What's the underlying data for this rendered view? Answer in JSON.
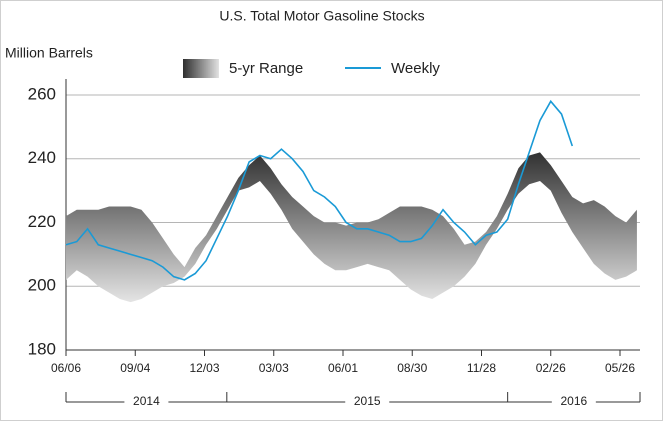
{
  "chart_data": {
    "type": "line",
    "title": "U.S. Total Motor Gasoline Stocks",
    "y_axis_label": "Million Barrels",
    "x": [
      "2014-06-06",
      "2014-06-20",
      "2014-07-04",
      "2014-07-18",
      "2014-08-01",
      "2014-08-15",
      "2014-08-29",
      "2014-09-12",
      "2014-09-26",
      "2014-10-10",
      "2014-10-24",
      "2014-11-07",
      "2014-11-21",
      "2014-12-05",
      "2014-12-19",
      "2015-01-02",
      "2015-01-16",
      "2015-01-30",
      "2015-02-13",
      "2015-02-27",
      "2015-03-13",
      "2015-03-27",
      "2015-04-10",
      "2015-04-24",
      "2015-05-08",
      "2015-05-22",
      "2015-06-05",
      "2015-06-19",
      "2015-07-03",
      "2015-07-17",
      "2015-07-31",
      "2015-08-14",
      "2015-08-28",
      "2015-09-11",
      "2015-09-25",
      "2015-10-09",
      "2015-10-23",
      "2015-11-06",
      "2015-11-20",
      "2015-12-04",
      "2015-12-18",
      "2016-01-01",
      "2016-01-15",
      "2016-01-29",
      "2016-02-12",
      "2016-02-26",
      "2016-03-11",
      "2016-03-25",
      "2016-04-08",
      "2016-04-22",
      "2016-05-06",
      "2016-05-20",
      "2016-06-03",
      "2016-06-17"
    ],
    "series": [
      {
        "name": "5-yr Range",
        "kind": "range",
        "colors": [
          "#2e2e2e",
          "#e2e2e2"
        ],
        "lower": [
          202,
          205,
          203,
          200,
          198,
          196,
          195,
          196,
          198,
          200,
          201,
          203,
          207,
          213,
          218,
          224,
          230,
          231,
          233,
          229,
          224,
          218,
          214,
          210,
          207,
          205,
          205,
          206,
          207,
          206,
          205,
          202,
          199,
          197,
          196,
          198,
          200,
          203,
          207,
          213,
          218,
          224,
          229,
          232,
          233,
          230,
          223,
          217,
          212,
          207,
          204,
          202,
          203,
          205
        ],
        "upper": [
          222,
          224,
          224,
          224,
          225,
          225,
          225,
          224,
          220,
          215,
          210,
          206,
          212,
          216,
          222,
          228,
          234,
          238,
          241,
          237,
          232,
          228,
          225,
          222,
          220,
          220,
          219,
          220,
          220,
          221,
          223,
          225,
          225,
          225,
          224,
          222,
          218,
          213,
          214,
          217,
          222,
          229,
          237,
          241,
          242,
          238,
          233,
          228,
          226,
          227,
          225,
          222,
          220,
          224
        ]
      },
      {
        "name": "Weekly",
        "color": "#1a9ad6",
        "values": [
          213,
          214,
          218,
          213,
          212,
          211,
          210,
          209,
          208,
          206,
          203,
          202,
          204,
          208,
          215,
          222,
          230,
          239,
          241,
          240,
          243,
          240,
          236,
          230,
          228,
          225,
          220,
          218,
          218,
          217,
          216,
          214,
          214,
          215,
          219,
          224,
          220,
          217,
          213,
          216,
          217,
          221,
          232,
          242,
          252,
          258,
          254,
          244,
          null,
          null,
          null,
          null,
          null,
          null
        ]
      }
    ],
    "xlim": [
      "2014-06-06",
      "2016-06-21"
    ],
    "xticks": [
      {
        "value": "2014-06-06",
        "label": "06/06"
      },
      {
        "value": "2014-09-04",
        "label": "09/04"
      },
      {
        "value": "2014-12-03",
        "label": "12/03"
      },
      {
        "value": "2015-03-03",
        "label": "03/03"
      },
      {
        "value": "2015-06-01",
        "label": "06/01"
      },
      {
        "value": "2015-08-30",
        "label": "08/30"
      },
      {
        "value": "2015-11-28",
        "label": "11/28"
      },
      {
        "value": "2016-02-26",
        "label": "02/26"
      },
      {
        "value": "2016-05-26",
        "label": "05/26"
      }
    ],
    "x_groups": [
      "2014",
      "2015",
      "2016"
    ],
    "ylim": [
      180,
      265
    ],
    "yticks": [
      180,
      200,
      220,
      240,
      260
    ],
    "grid": true
  }
}
